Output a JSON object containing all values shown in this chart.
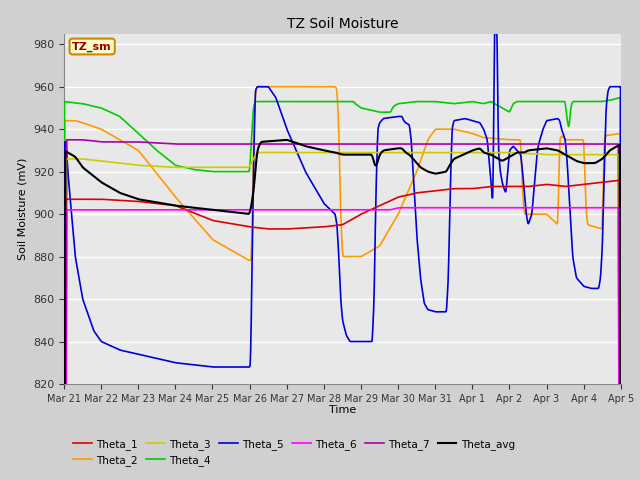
{
  "title": "TZ Soil Moisture",
  "ylabel": "Soil Moisture (mV)",
  "xlabel": "Time",
  "box_label": "TZ_sm",
  "ylim": [
    820,
    985
  ],
  "yticks": [
    820,
    840,
    860,
    880,
    900,
    920,
    940,
    960,
    980
  ],
  "series_colors": {
    "Theta_1": "#dd0000",
    "Theta_2": "#ff9900",
    "Theta_3": "#cccc00",
    "Theta_4": "#00cc00",
    "Theta_5": "#0000dd",
    "Theta_6": "#ff00ff",
    "Theta_7": "#aa00aa",
    "Theta_avg": "#000000"
  },
  "fig_bg": "#d0d0d0",
  "plot_bg": "#e8e8e8",
  "grid_color": "#ffffff",
  "date_labels": [
    "Mar 21",
    "Mar 22",
    "Mar 23",
    "Mar 24",
    "Mar 25",
    "Mar 26",
    "Mar 27",
    "Mar 28",
    "Mar 29",
    "Mar 30",
    "Mar 31",
    "Apr 1",
    "Apr 2",
    "Apr 3",
    "Apr 4",
    "Apr 5"
  ]
}
